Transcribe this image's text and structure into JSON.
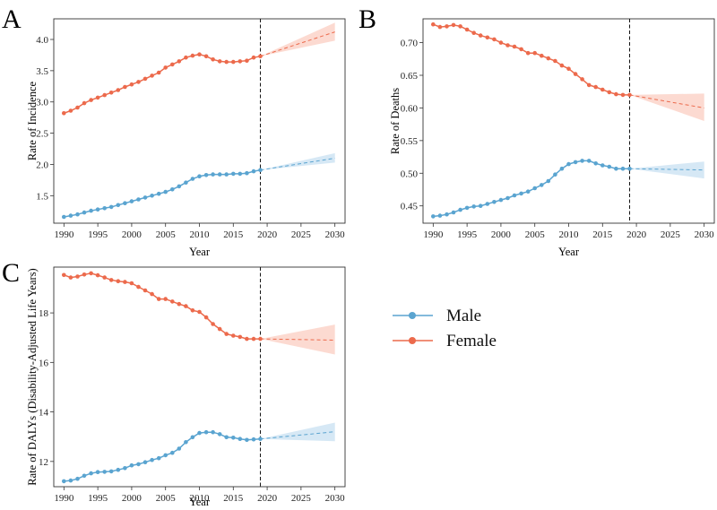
{
  "colors": {
    "male": "#5aa4d0",
    "female": "#ec6a4c",
    "male_band": "#cfe4f3",
    "female_band": "#fbd3c9"
  },
  "legend": [
    {
      "key": "male",
      "label": "Male"
    },
    {
      "key": "female",
      "label": "Female"
    }
  ],
  "chart_data": [
    {
      "id": "A",
      "letter": "A",
      "type": "line",
      "title": "",
      "xlabel": "Year",
      "ylabel": "Rate of Incidence",
      "xlim": [
        1988.5,
        2031.5
      ],
      "ylim": [
        1.06,
        4.33
      ],
      "xticks": [
        1990,
        1995,
        2000,
        2005,
        2010,
        2015,
        2020,
        2025,
        2030
      ],
      "yticks": [
        1.5,
        2.0,
        2.5,
        3.0,
        3.5,
        4.0
      ],
      "ytick_labels": [
        "1.5",
        "2.0",
        "2.5",
        "3.0",
        "3.5",
        "4.0"
      ],
      "vline": 2019,
      "series": [
        {
          "name": "Male",
          "color_key": "male",
          "x": [
            1990,
            1991,
            1992,
            1993,
            1994,
            1995,
            1996,
            1997,
            1998,
            1999,
            2000,
            2001,
            2002,
            2003,
            2004,
            2005,
            2006,
            2007,
            2008,
            2009,
            2010,
            2011,
            2012,
            2013,
            2014,
            2015,
            2016,
            2017,
            2018,
            2019
          ],
          "values": [
            1.16,
            1.18,
            1.2,
            1.23,
            1.26,
            1.28,
            1.3,
            1.32,
            1.35,
            1.38,
            1.41,
            1.44,
            1.47,
            1.5,
            1.53,
            1.56,
            1.6,
            1.65,
            1.71,
            1.77,
            1.81,
            1.83,
            1.84,
            1.84,
            1.84,
            1.85,
            1.85,
            1.86,
            1.89,
            1.91
          ],
          "forecast": {
            "x": [
              2019,
              2030
            ],
            "values": [
              1.91,
              2.1
            ],
            "lower": [
              1.91,
              2.03
            ],
            "upper": [
              1.91,
              2.18
            ]
          }
        },
        {
          "name": "Female",
          "color_key": "female",
          "x": [
            1990,
            1991,
            1992,
            1993,
            1994,
            1995,
            1996,
            1997,
            1998,
            1999,
            2000,
            2001,
            2002,
            2003,
            2004,
            2005,
            2006,
            2007,
            2008,
            2009,
            2010,
            2011,
            2012,
            2013,
            2014,
            2015,
            2016,
            2017,
            2018,
            2019
          ],
          "values": [
            2.82,
            2.86,
            2.91,
            2.98,
            3.03,
            3.07,
            3.11,
            3.15,
            3.19,
            3.24,
            3.28,
            3.32,
            3.37,
            3.42,
            3.47,
            3.55,
            3.6,
            3.65,
            3.71,
            3.74,
            3.76,
            3.73,
            3.68,
            3.65,
            3.64,
            3.64,
            3.65,
            3.66,
            3.71,
            3.73
          ],
          "forecast": {
            "x": [
              2019,
              2030
            ],
            "values": [
              3.73,
              4.12
            ],
            "lower": [
              3.73,
              3.98
            ],
            "upper": [
              3.73,
              4.27
            ]
          }
        }
      ]
    },
    {
      "id": "B",
      "letter": "B",
      "type": "line",
      "title": "",
      "xlabel": "Year",
      "ylabel": "Rate of Deaths",
      "xlim": [
        1988.5,
        2031.5
      ],
      "ylim": [
        0.4235,
        0.7365
      ],
      "xticks": [
        1990,
        1995,
        2000,
        2005,
        2010,
        2015,
        2020,
        2025,
        2030
      ],
      "yticks": [
        0.45,
        0.5,
        0.55,
        0.6,
        0.65,
        0.7
      ],
      "ytick_labels": [
        "0.45",
        "0.50",
        "0.55",
        "0.60",
        "0.65",
        "0.70"
      ],
      "vline": 2019,
      "series": [
        {
          "name": "Male",
          "color_key": "male",
          "x": [
            1990,
            1991,
            1992,
            1993,
            1994,
            1995,
            1996,
            1997,
            1998,
            1999,
            2000,
            2001,
            2002,
            2003,
            2004,
            2005,
            2006,
            2007,
            2008,
            2009,
            2010,
            2011,
            2012,
            2013,
            2014,
            2015,
            2016,
            2017,
            2018,
            2019
          ],
          "values": [
            0.434,
            0.435,
            0.437,
            0.44,
            0.444,
            0.447,
            0.449,
            0.45,
            0.453,
            0.456,
            0.459,
            0.462,
            0.466,
            0.469,
            0.472,
            0.477,
            0.482,
            0.488,
            0.498,
            0.507,
            0.514,
            0.517,
            0.519,
            0.519,
            0.515,
            0.512,
            0.51,
            0.507,
            0.507,
            0.507
          ],
          "forecast": {
            "x": [
              2019,
              2030
            ],
            "values": [
              0.507,
              0.505
            ],
            "lower": [
              0.507,
              0.492
            ],
            "upper": [
              0.507,
              0.518
            ]
          }
        },
        {
          "name": "Female",
          "color_key": "female",
          "x": [
            1990,
            1991,
            1992,
            1993,
            1994,
            1995,
            1996,
            1997,
            1998,
            1999,
            2000,
            2001,
            2002,
            2003,
            2004,
            2005,
            2006,
            2007,
            2008,
            2009,
            2010,
            2011,
            2012,
            2013,
            2014,
            2015,
            2016,
            2017,
            2018,
            2019
          ],
          "values": [
            0.728,
            0.724,
            0.725,
            0.727,
            0.725,
            0.72,
            0.715,
            0.711,
            0.708,
            0.705,
            0.7,
            0.696,
            0.694,
            0.69,
            0.684,
            0.684,
            0.68,
            0.676,
            0.672,
            0.665,
            0.66,
            0.652,
            0.644,
            0.635,
            0.632,
            0.628,
            0.624,
            0.621,
            0.62,
            0.62
          ],
          "forecast": {
            "x": [
              2019,
              2030
            ],
            "values": [
              0.62,
              0.6
            ],
            "lower": [
              0.62,
              0.58
            ],
            "upper": [
              0.62,
              0.622
            ]
          }
        }
      ]
    },
    {
      "id": "C",
      "letter": "C",
      "type": "line",
      "title": "",
      "xlabel": "Year",
      "ylabel": "Rate of DALYs (Disability-Adjusted Life Years)",
      "xlim": [
        1988.5,
        2031.5
      ],
      "ylim": [
        10.98,
        19.85
      ],
      "xticks": [
        1990,
        1995,
        2000,
        2005,
        2010,
        2015,
        2020,
        2025,
        2030
      ],
      "yticks": [
        12,
        14,
        16,
        18
      ],
      "ytick_labels": [
        "12",
        "14",
        "16",
        "18"
      ],
      "vline": 2019,
      "series": [
        {
          "name": "Male",
          "color_key": "male",
          "x": [
            1990,
            1991,
            1992,
            1993,
            1994,
            1995,
            1996,
            1997,
            1998,
            1999,
            2000,
            2001,
            2002,
            2003,
            2004,
            2005,
            2006,
            2007,
            2008,
            2009,
            2010,
            2011,
            2012,
            2013,
            2014,
            2015,
            2016,
            2017,
            2018,
            2019
          ],
          "values": [
            11.2,
            11.23,
            11.3,
            11.42,
            11.52,
            11.57,
            11.58,
            11.6,
            11.66,
            11.73,
            11.84,
            11.89,
            11.97,
            12.06,
            12.13,
            12.25,
            12.35,
            12.52,
            12.78,
            12.98,
            13.15,
            13.18,
            13.18,
            13.1,
            12.98,
            12.96,
            12.91,
            12.87,
            12.89,
            12.91
          ],
          "forecast": {
            "x": [
              2019,
              2030
            ],
            "values": [
              12.91,
              13.2
            ],
            "lower": [
              12.91,
              12.82
            ],
            "upper": [
              12.91,
              13.57
            ]
          }
        },
        {
          "name": "Female",
          "color_key": "female",
          "x": [
            1990,
            1991,
            1992,
            1993,
            1994,
            1995,
            1996,
            1997,
            1998,
            1999,
            2000,
            2001,
            2002,
            2003,
            2004,
            2005,
            2006,
            2007,
            2008,
            2009,
            2010,
            2011,
            2012,
            2013,
            2014,
            2015,
            2016,
            2017,
            2018,
            2019
          ],
          "values": [
            19.53,
            19.43,
            19.47,
            19.55,
            19.6,
            19.52,
            19.43,
            19.33,
            19.28,
            19.25,
            19.2,
            19.05,
            18.91,
            18.76,
            18.56,
            18.56,
            18.46,
            18.36,
            18.27,
            18.1,
            18.04,
            17.82,
            17.55,
            17.35,
            17.15,
            17.08,
            17.03,
            16.95,
            16.95,
            16.95
          ],
          "forecast": {
            "x": [
              2019,
              2030
            ],
            "values": [
              16.95,
              16.9
            ],
            "lower": [
              16.95,
              16.32
            ],
            "upper": [
              16.95,
              17.53
            ]
          }
        }
      ]
    }
  ]
}
